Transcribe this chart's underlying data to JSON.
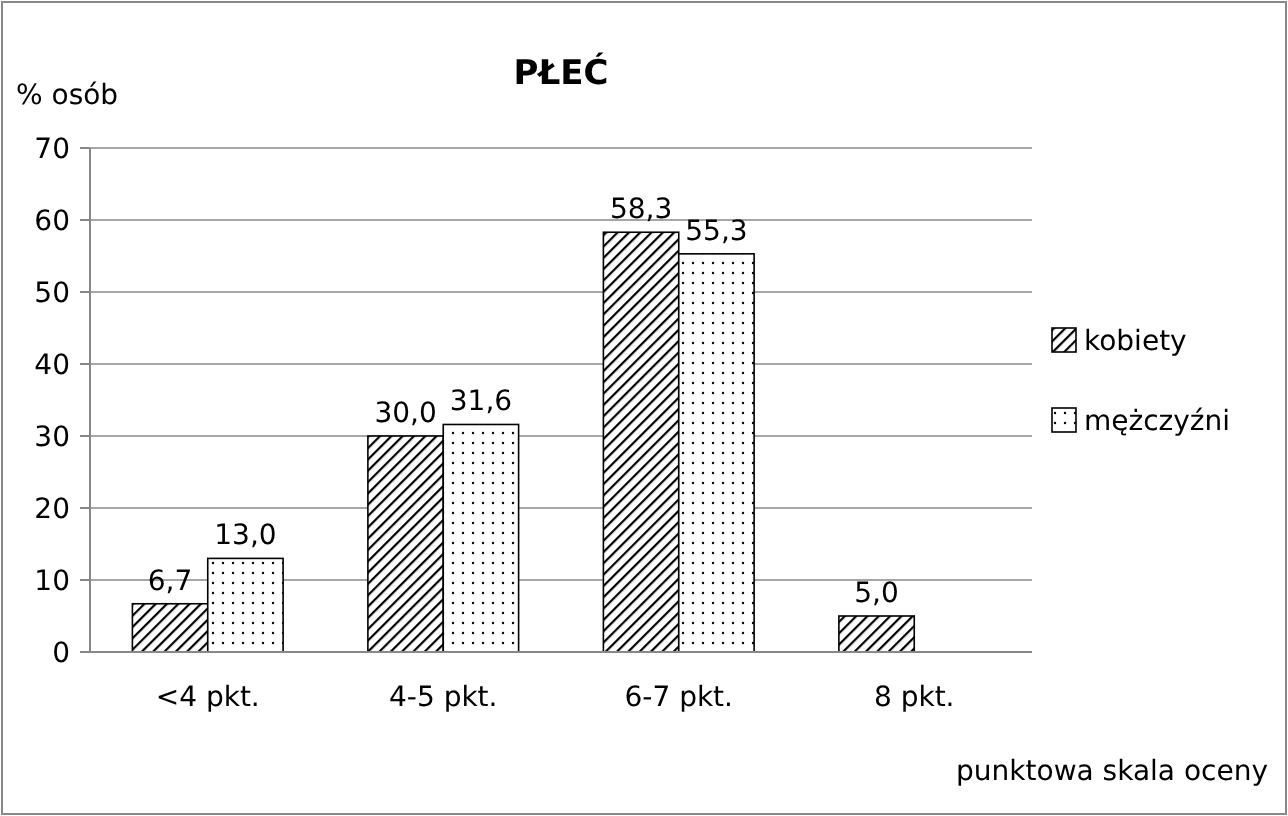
{
  "chart_data": {
    "type": "bar",
    "title": "PŁEĆ",
    "ylabel": "% osób",
    "xlabel": "punktowa skala oceny",
    "categories": [
      "<4 pkt.",
      "4-5 pkt.",
      "6-7 pkt.",
      "8 pkt."
    ],
    "series": [
      {
        "name": "kobiety",
        "color": "#000000",
        "values": [
          6.7,
          30.0,
          58.3,
          5.0
        ],
        "value_labels": [
          "6,7",
          "30,0",
          "58,3",
          "5,0"
        ]
      },
      {
        "name": "mężczyźni",
        "color": "#000000",
        "values": [
          13.0,
          31.6,
          55.3,
          null
        ],
        "value_labels": [
          "13,0",
          "31,6",
          "55,3",
          null
        ]
      }
    ],
    "ylim": [
      0,
      70
    ],
    "yticks": [
      0,
      10,
      20,
      30,
      40,
      50,
      60,
      70
    ],
    "grid": "y",
    "legend": "right"
  }
}
